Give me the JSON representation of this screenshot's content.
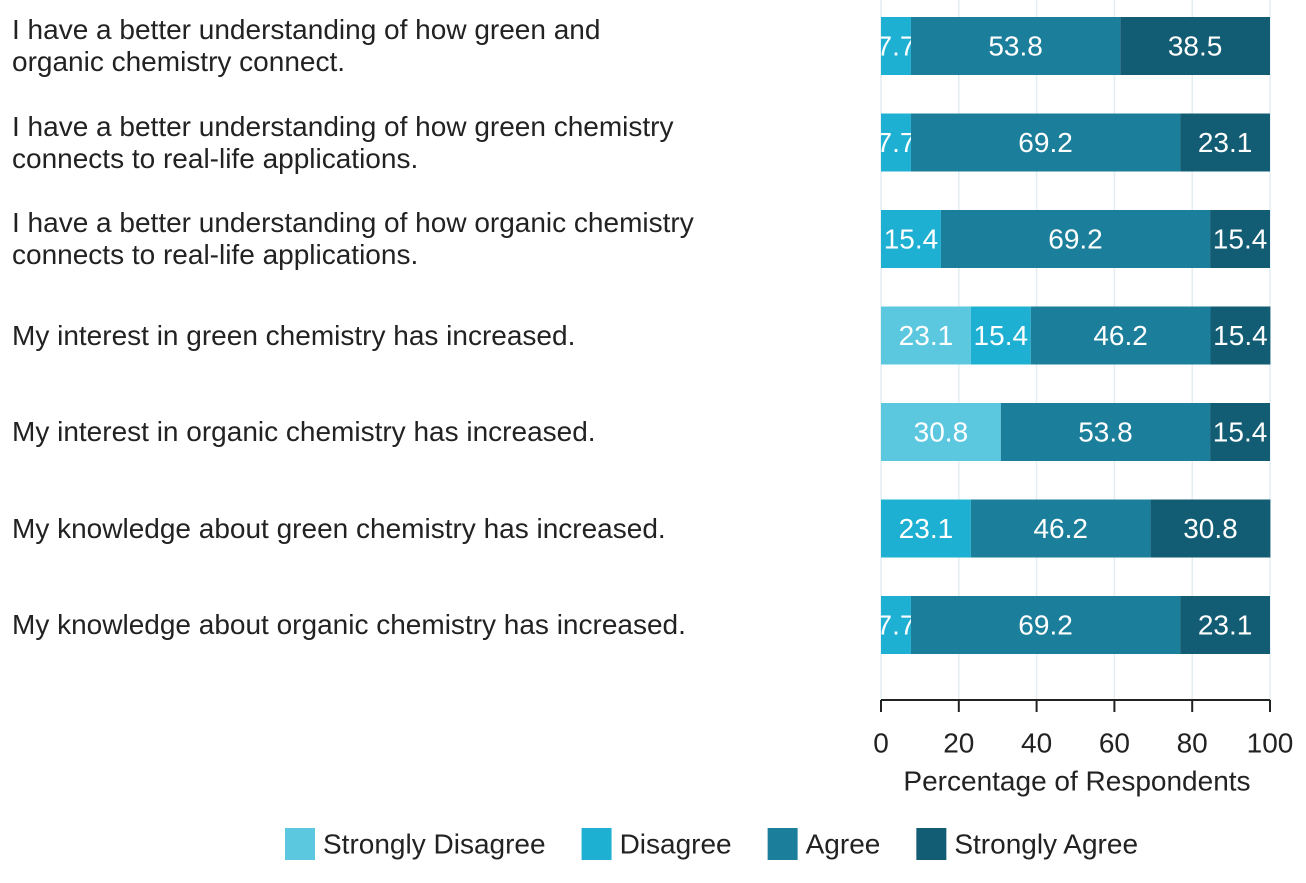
{
  "chart_data": {
    "type": "stacked-bar-horizontal",
    "categories": [
      "I have a better understanding of how green and\norganic chemistry connect.",
      "I have a better understanding of how green chemistry\nconnects to real-life applications.",
      "I have a better understanding of how organic chemistry\nconnects to real-life applications.",
      "My interest in green chemistry has increased.",
      "My interest in organic chemistry has increased.",
      "My knowledge about green chemistry has increased.",
      "My knowledge about organic chemistry has increased."
    ],
    "series": [
      {
        "name": "Strongly Disagree",
        "color": "#5cc8e0",
        "values": [
          null,
          null,
          null,
          23.1,
          30.8,
          null,
          null
        ]
      },
      {
        "name": "Disagree",
        "color": "#1db0d3",
        "values": [
          7.7,
          7.7,
          15.4,
          15.4,
          null,
          23.1,
          7.7
        ]
      },
      {
        "name": "Agree",
        "color": "#1b7f9b",
        "values": [
          53.8,
          69.2,
          69.2,
          46.2,
          53.8,
          46.2,
          69.2
        ]
      },
      {
        "name": "Strongly Agree",
        "color": "#125c74",
        "values": [
          38.5,
          23.1,
          15.4,
          15.4,
          15.4,
          30.8,
          23.1
        ]
      }
    ],
    "xlabel": "Percentage of Respondents",
    "xlim": [
      0,
      100
    ],
    "xticks": [
      0,
      20,
      40,
      60,
      80,
      100
    ],
    "grid": true
  }
}
